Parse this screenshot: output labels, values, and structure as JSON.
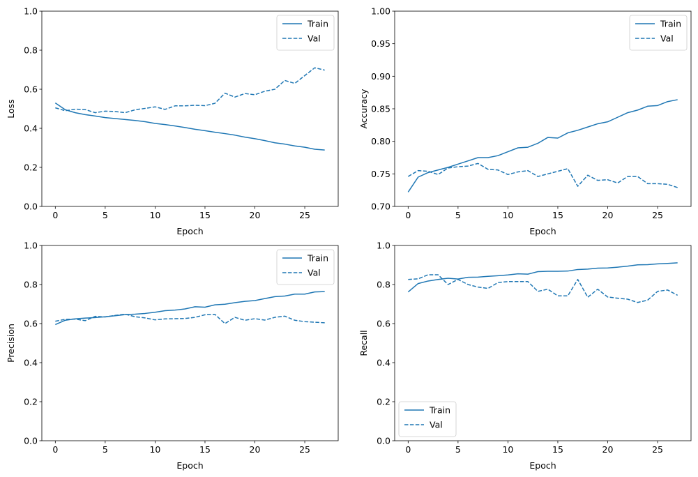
{
  "chart_data": [
    {
      "type": "line",
      "xlabel": "Epoch",
      "ylabel": "Loss",
      "xlim": [
        -1.35,
        28.35
      ],
      "ylim": [
        0,
        1.0
      ],
      "xticks": [
        0,
        5,
        10,
        15,
        20,
        25
      ],
      "yticks": [
        0.0,
        0.2,
        0.4,
        0.6,
        0.8,
        1.0
      ],
      "ytick_labels": [
        "0.0",
        "0.2",
        "0.4",
        "0.6",
        "0.8",
        "1.0"
      ],
      "legend_position": "top-right",
      "x": [
        0,
        1,
        2,
        3,
        4,
        5,
        6,
        7,
        8,
        9,
        10,
        11,
        12,
        13,
        14,
        15,
        16,
        17,
        18,
        19,
        20,
        21,
        22,
        23,
        24,
        25,
        26,
        27
      ],
      "series": [
        {
          "name": "Train",
          "style": "solid",
          "values": [
            0.53,
            0.495,
            0.48,
            0.47,
            0.463,
            0.455,
            0.45,
            0.445,
            0.44,
            0.434,
            0.425,
            0.419,
            0.412,
            0.404,
            0.395,
            0.388,
            0.38,
            0.373,
            0.365,
            0.355,
            0.347,
            0.337,
            0.326,
            0.319,
            0.31,
            0.303,
            0.293,
            0.289
          ]
        },
        {
          "name": "Val",
          "style": "dashed",
          "values": [
            0.505,
            0.49,
            0.498,
            0.496,
            0.48,
            0.488,
            0.486,
            0.48,
            0.495,
            0.502,
            0.51,
            0.497,
            0.515,
            0.515,
            0.518,
            0.516,
            0.528,
            0.58,
            0.56,
            0.578,
            0.572,
            0.59,
            0.6,
            0.645,
            0.63,
            0.67,
            0.71,
            0.698
          ]
        }
      ]
    },
    {
      "type": "line",
      "xlabel": "Epoch",
      "ylabel": "Accuracy",
      "xlim": [
        -1.35,
        28.35
      ],
      "ylim": [
        0.7,
        1.0
      ],
      "xticks": [
        0,
        5,
        10,
        15,
        20,
        25
      ],
      "yticks": [
        0.7,
        0.75,
        0.8,
        0.85,
        0.9,
        0.95,
        1.0
      ],
      "ytick_labels": [
        "0.70",
        "0.75",
        "0.80",
        "0.85",
        "0.90",
        "0.95",
        "1.00"
      ],
      "legend_position": "top-right",
      "x": [
        0,
        1,
        2,
        3,
        4,
        5,
        6,
        7,
        8,
        9,
        10,
        11,
        12,
        13,
        14,
        15,
        16,
        17,
        18,
        19,
        20,
        21,
        22,
        23,
        24,
        25,
        26,
        27
      ],
      "series": [
        {
          "name": "Train",
          "style": "solid",
          "values": [
            0.722,
            0.745,
            0.752,
            0.756,
            0.76,
            0.765,
            0.77,
            0.775,
            0.775,
            0.778,
            0.784,
            0.79,
            0.791,
            0.797,
            0.806,
            0.805,
            0.813,
            0.817,
            0.822,
            0.827,
            0.83,
            0.837,
            0.844,
            0.848,
            0.854,
            0.855,
            0.861,
            0.864
          ]
        },
        {
          "name": "Val",
          "style": "dashed",
          "values": [
            0.746,
            0.755,
            0.754,
            0.749,
            0.759,
            0.761,
            0.762,
            0.766,
            0.757,
            0.756,
            0.749,
            0.753,
            0.755,
            0.746,
            0.75,
            0.754,
            0.758,
            0.731,
            0.748,
            0.74,
            0.741,
            0.736,
            0.746,
            0.746,
            0.735,
            0.735,
            0.734,
            0.729
          ]
        }
      ]
    },
    {
      "type": "line",
      "xlabel": "Epoch",
      "ylabel": "Precision",
      "xlim": [
        -1.35,
        28.35
      ],
      "ylim": [
        0,
        1.0
      ],
      "xticks": [
        0,
        5,
        10,
        15,
        20,
        25
      ],
      "yticks": [
        0.0,
        0.2,
        0.4,
        0.6,
        0.8,
        1.0
      ],
      "ytick_labels": [
        "0.0",
        "0.2",
        "0.4",
        "0.6",
        "0.8",
        "1.0"
      ],
      "legend_position": "top-right",
      "x": [
        0,
        1,
        2,
        3,
        4,
        5,
        6,
        7,
        8,
        9,
        10,
        11,
        12,
        13,
        14,
        15,
        16,
        17,
        18,
        19,
        20,
        21,
        22,
        23,
        24,
        25,
        26,
        27
      ],
      "series": [
        {
          "name": "Train",
          "style": "solid",
          "values": [
            0.595,
            0.617,
            0.624,
            0.628,
            0.631,
            0.635,
            0.64,
            0.646,
            0.648,
            0.652,
            0.658,
            0.666,
            0.669,
            0.675,
            0.686,
            0.684,
            0.696,
            0.699,
            0.707,
            0.714,
            0.718,
            0.728,
            0.738,
            0.741,
            0.751,
            0.751,
            0.762,
            0.764
          ]
        },
        {
          "name": "Val",
          "style": "dashed",
          "values": [
            0.612,
            0.622,
            0.623,
            0.615,
            0.637,
            0.634,
            0.642,
            0.648,
            0.635,
            0.629,
            0.619,
            0.624,
            0.625,
            0.626,
            0.632,
            0.645,
            0.647,
            0.6,
            0.632,
            0.617,
            0.625,
            0.618,
            0.632,
            0.638,
            0.617,
            0.61,
            0.607,
            0.604
          ]
        }
      ]
    },
    {
      "type": "line",
      "xlabel": "Epoch",
      "ylabel": "Recall",
      "xlim": [
        -1.35,
        28.35
      ],
      "ylim": [
        0,
        1.0
      ],
      "xticks": [
        0,
        5,
        10,
        15,
        20,
        25
      ],
      "yticks": [
        0.0,
        0.2,
        0.4,
        0.6,
        0.8,
        1.0
      ],
      "ytick_labels": [
        "0.0",
        "0.2",
        "0.4",
        "0.6",
        "0.8",
        "1.0"
      ],
      "legend_position": "bottom-left",
      "x": [
        0,
        1,
        2,
        3,
        4,
        5,
        6,
        7,
        8,
        9,
        10,
        11,
        12,
        13,
        14,
        15,
        16,
        17,
        18,
        19,
        20,
        21,
        22,
        23,
        24,
        25,
        26,
        27
      ],
      "series": [
        {
          "name": "Train",
          "style": "solid",
          "values": [
            0.762,
            0.805,
            0.818,
            0.826,
            0.832,
            0.828,
            0.837,
            0.838,
            0.842,
            0.845,
            0.849,
            0.855,
            0.853,
            0.866,
            0.868,
            0.868,
            0.869,
            0.877,
            0.879,
            0.884,
            0.885,
            0.889,
            0.894,
            0.901,
            0.902,
            0.906,
            0.908,
            0.911
          ]
        },
        {
          "name": "Val",
          "style": "dashed",
          "values": [
            0.826,
            0.829,
            0.85,
            0.85,
            0.8,
            0.826,
            0.8,
            0.787,
            0.78,
            0.81,
            0.815,
            0.815,
            0.815,
            0.765,
            0.776,
            0.742,
            0.742,
            0.826,
            0.735,
            0.776,
            0.736,
            0.73,
            0.725,
            0.708,
            0.72,
            0.765,
            0.772,
            0.745
          ]
        }
      ]
    }
  ],
  "colors": {
    "line": "#1f77b4",
    "axis": "#000000",
    "legend_border": "#cccccc",
    "background": "#ffffff"
  }
}
